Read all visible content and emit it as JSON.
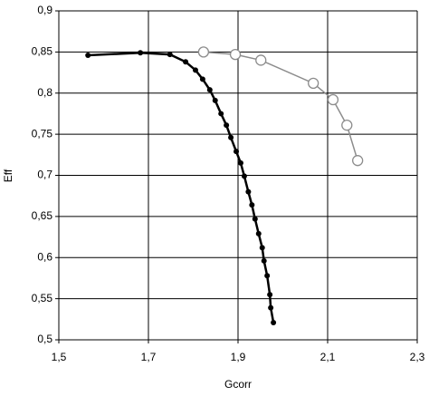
{
  "chart_data": {
    "type": "line",
    "xlabel": "Gcorr",
    "ylabel": "Eff",
    "xlim": [
      1.5,
      2.3
    ],
    "ylim": [
      0.5,
      0.9
    ],
    "grid": true,
    "xticks": [
      {
        "value": 1.5,
        "label": "1,5"
      },
      {
        "value": 1.7,
        "label": "1,7"
      },
      {
        "value": 1.9,
        "label": "1,9"
      },
      {
        "value": 2.1,
        "label": "2,1"
      },
      {
        "value": 2.3,
        "label": "2,3"
      }
    ],
    "yticks": [
      {
        "value": 0.5,
        "label": "0,5"
      },
      {
        "value": 0.55,
        "label": "0,55"
      },
      {
        "value": 0.6,
        "label": "0,6"
      },
      {
        "value": 0.65,
        "label": "0,65"
      },
      {
        "value": 0.7,
        "label": "0,7"
      },
      {
        "value": 0.75,
        "label": "0,75"
      },
      {
        "value": 0.8,
        "label": "0,8"
      },
      {
        "value": 0.85,
        "label": "0,85"
      },
      {
        "value": 0.9,
        "label": "0,9"
      }
    ],
    "series": [
      {
        "color": "#000000",
        "marker": "dot",
        "x": [
          1.565,
          1.682,
          1.748,
          1.783,
          1.805,
          1.821,
          1.837,
          1.849,
          1.862,
          1.874,
          1.884,
          1.896,
          1.906,
          1.914,
          1.923,
          1.931,
          1.938,
          1.946,
          1.954,
          1.958,
          1.965,
          1.971,
          1.973,
          1.979
        ],
        "values": [
          0.846,
          0.849,
          0.847,
          0.838,
          0.828,
          0.817,
          0.804,
          0.791,
          0.775,
          0.761,
          0.746,
          0.729,
          0.715,
          0.699,
          0.68,
          0.664,
          0.647,
          0.629,
          0.612,
          0.596,
          0.578,
          0.555,
          0.539,
          0.521
        ]
      },
      {
        "color": "#8c8c8c",
        "marker": "circle",
        "x": [
          1.823,
          1.894,
          1.951,
          2.068,
          2.112,
          2.143,
          2.167
        ],
        "values": [
          0.85,
          0.847,
          0.84,
          0.812,
          0.792,
          0.761,
          0.718
        ]
      }
    ]
  }
}
